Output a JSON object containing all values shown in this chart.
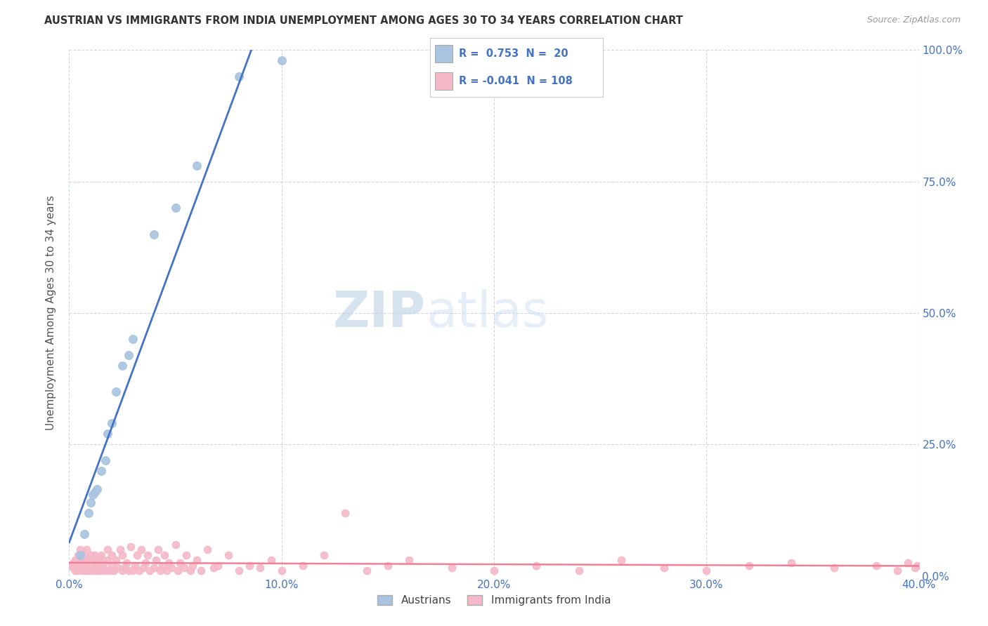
{
  "title": "AUSTRIAN VS IMMIGRANTS FROM INDIA UNEMPLOYMENT AMONG AGES 30 TO 34 YEARS CORRELATION CHART",
  "source": "Source: ZipAtlas.com",
  "ylabel": "Unemployment Among Ages 30 to 34 years",
  "xmin": 0.0,
  "xmax": 0.4,
  "ymin": 0.0,
  "ymax": 1.0,
  "xtick_labels": [
    "0.0%",
    "10.0%",
    "20.0%",
    "30.0%",
    "40.0%"
  ],
  "xtick_values": [
    0.0,
    0.1,
    0.2,
    0.3,
    0.4
  ],
  "ytick_labels_right": [
    "0.0%",
    "25.0%",
    "50.0%",
    "75.0%",
    "100.0%"
  ],
  "ytick_values": [
    0.0,
    0.25,
    0.5,
    0.75,
    1.0
  ],
  "legend_r_austrians": "0.753",
  "legend_n_austrians": "20",
  "legend_r_india": "-0.041",
  "legend_n_india": "108",
  "austrians_color": "#a8c4e0",
  "india_color": "#f4b8c8",
  "trendline_austrians_color": "#4472c4",
  "trendline_india_color": "#f08098",
  "watermark_zip": "ZIP",
  "watermark_atlas": "atlas",
  "background_color": "#ffffff",
  "grid_color": "#d0d8e8",
  "austrians_x": [
    0.005,
    0.007,
    0.009,
    0.01,
    0.011,
    0.012,
    0.013,
    0.015,
    0.017,
    0.018,
    0.02,
    0.022,
    0.025,
    0.028,
    0.03,
    0.04,
    0.05,
    0.06,
    0.08,
    0.1
  ],
  "austrians_y": [
    0.04,
    0.08,
    0.12,
    0.14,
    0.155,
    0.16,
    0.165,
    0.2,
    0.22,
    0.27,
    0.29,
    0.35,
    0.4,
    0.42,
    0.45,
    0.65,
    0.7,
    0.78,
    0.95,
    0.98
  ],
  "india_x": [
    0.001,
    0.002,
    0.002,
    0.003,
    0.003,
    0.004,
    0.004,
    0.004,
    0.005,
    0.005,
    0.005,
    0.006,
    0.006,
    0.007,
    0.007,
    0.007,
    0.008,
    0.008,
    0.008,
    0.009,
    0.009,
    0.01,
    0.01,
    0.011,
    0.011,
    0.012,
    0.012,
    0.013,
    0.013,
    0.014,
    0.014,
    0.015,
    0.015,
    0.016,
    0.016,
    0.017,
    0.018,
    0.018,
    0.019,
    0.02,
    0.02,
    0.021,
    0.022,
    0.023,
    0.024,
    0.025,
    0.025,
    0.026,
    0.027,
    0.028,
    0.029,
    0.03,
    0.031,
    0.032,
    0.033,
    0.034,
    0.035,
    0.036,
    0.037,
    0.038,
    0.04,
    0.041,
    0.042,
    0.043,
    0.044,
    0.045,
    0.046,
    0.047,
    0.048,
    0.05,
    0.051,
    0.052,
    0.054,
    0.055,
    0.057,
    0.058,
    0.06,
    0.062,
    0.065,
    0.068,
    0.07,
    0.075,
    0.08,
    0.085,
    0.09,
    0.095,
    0.1,
    0.11,
    0.12,
    0.13,
    0.14,
    0.15,
    0.16,
    0.18,
    0.2,
    0.22,
    0.24,
    0.26,
    0.28,
    0.3,
    0.32,
    0.34,
    0.36,
    0.38,
    0.39,
    0.395,
    0.398,
    0.399
  ],
  "india_y": [
    0.02,
    0.015,
    0.025,
    0.01,
    0.03,
    0.01,
    0.02,
    0.04,
    0.015,
    0.025,
    0.05,
    0.01,
    0.03,
    0.01,
    0.02,
    0.04,
    0.01,
    0.025,
    0.05,
    0.01,
    0.03,
    0.01,
    0.04,
    0.015,
    0.03,
    0.01,
    0.04,
    0.015,
    0.025,
    0.01,
    0.035,
    0.01,
    0.04,
    0.015,
    0.025,
    0.01,
    0.03,
    0.05,
    0.01,
    0.02,
    0.04,
    0.01,
    0.03,
    0.015,
    0.05,
    0.01,
    0.04,
    0.015,
    0.025,
    0.01,
    0.055,
    0.01,
    0.02,
    0.04,
    0.01,
    0.05,
    0.015,
    0.025,
    0.04,
    0.01,
    0.015,
    0.03,
    0.05,
    0.01,
    0.02,
    0.04,
    0.01,
    0.025,
    0.015,
    0.06,
    0.01,
    0.025,
    0.015,
    0.04,
    0.01,
    0.02,
    0.03,
    0.01,
    0.05,
    0.015,
    0.02,
    0.04,
    0.01,
    0.02,
    0.015,
    0.03,
    0.01,
    0.02,
    0.04,
    0.12,
    0.01,
    0.02,
    0.03,
    0.015,
    0.01,
    0.02,
    0.01,
    0.03,
    0.015,
    0.01,
    0.02,
    0.025,
    0.015,
    0.02,
    0.01,
    0.025,
    0.015,
    0.02
  ]
}
